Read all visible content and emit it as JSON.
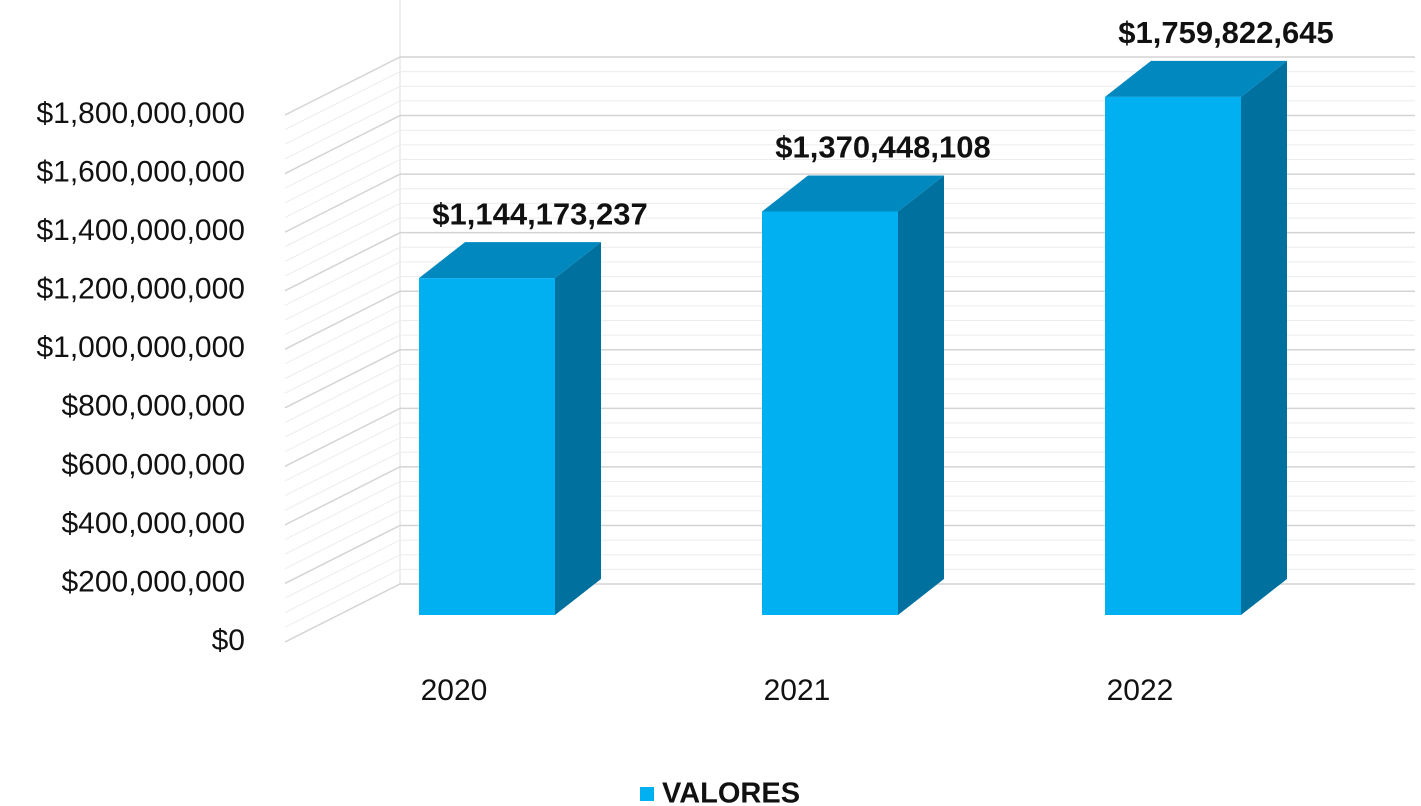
{
  "chart_data": {
    "type": "bar3d",
    "categories": [
      "2020",
      "2021",
      "2022"
    ],
    "series": [
      {
        "name": "VALORES",
        "color": "#00b0f0",
        "values": [
          1144173237,
          1370448108,
          1759822645
        ],
        "value_labels": [
          "$1,144,173,237",
          "$1,370,448,108",
          "$1,759,822,645"
        ]
      }
    ],
    "ylim": [
      0,
      1800000000
    ],
    "yticks": [
      {
        "value": 0,
        "label": "$0"
      },
      {
        "value": 200000000,
        "label": "$200,000,000"
      },
      {
        "value": 400000000,
        "label": "$400,000,000"
      },
      {
        "value": 600000000,
        "label": "$600,000,000"
      },
      {
        "value": 800000000,
        "label": "$800,000,000"
      },
      {
        "value": 1000000000,
        "label": "$1,000,000,000"
      },
      {
        "value": 1200000000,
        "label": "$1,200,000,000"
      },
      {
        "value": 1400000000,
        "label": "$1,400,000,000"
      },
      {
        "value": 1600000000,
        "label": "$1,600,000,000"
      },
      {
        "value": 1800000000,
        "label": "$1,800,000,000"
      }
    ],
    "grid": true,
    "legend": "bottom"
  }
}
